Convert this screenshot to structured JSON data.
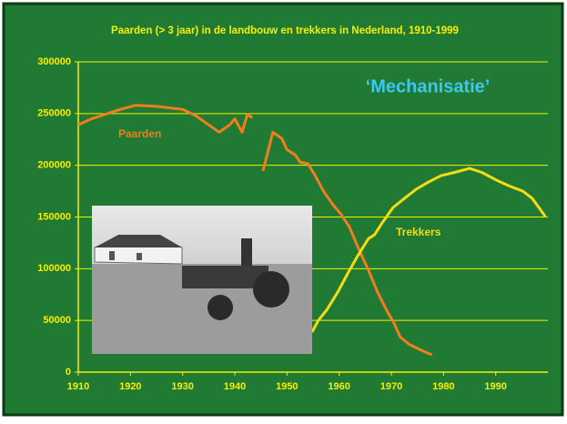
{
  "chart_data": {
    "type": "line",
    "title": "Paarden (> 3 jaar) in de landbouw en trekkers in Nederland, 1910-1999",
    "annotation": "‘Mechanisatie’",
    "xlim": [
      1910,
      2000
    ],
    "xticks": [
      1910,
      1920,
      1930,
      1940,
      1950,
      1960,
      1970,
      1980,
      1990
    ],
    "ylim": [
      0,
      300000
    ],
    "yticks": [
      0,
      50000,
      100000,
      150000,
      200000,
      250000,
      300000
    ],
    "grid": true,
    "series": [
      {
        "name": "Paarden",
        "color": "#f07d1e",
        "x": [
          1910,
          1912.4,
          1915,
          1918,
          1921,
          1925,
          1930,
          1932.5,
          1937,
          1939,
          1940,
          1941.4,
          1942.4,
          1943.4,
          1944,
          1945.4,
          1947.3,
          1949,
          1950,
          1951.6,
          1952.5,
          1954,
          1955.3,
          1957,
          1958.8,
          1960.3,
          1962,
          1963.5,
          1965.6,
          1967.3,
          1969,
          1970.5,
          1971.7,
          1973.4,
          1975,
          1976.9,
          1977.8
        ],
        "values": [
          239000,
          244700,
          249000,
          254000,
          258000,
          257000,
          254000,
          248000,
          232000,
          239000,
          245000,
          232000,
          249000,
          246000,
          null,
          194500,
          232000,
          226000,
          215000,
          210000,
          203000,
          201600,
          191000,
          175000,
          162000,
          153000,
          140000,
          122000,
          98600,
          78000,
          60700,
          47500,
          34000,
          27000,
          23000,
          18500,
          16700
        ]
      },
      {
        "name": "Trekkers",
        "color": "#f5dc14",
        "x": [
          1954.8,
          1956,
          1957.7,
          1959.8,
          1961.7,
          1963.5,
          1965.6,
          1966.8,
          1968.2,
          1970.3,
          1972.5,
          1974.8,
          1977.2,
          1979.5,
          1982,
          1985,
          1987.4,
          1990,
          1992.6,
          1995.2,
          1997,
          1999.5
        ],
        "values": [
          38700,
          50000,
          60700,
          78000,
          96000,
          112000,
          129000,
          133000,
          144000,
          159000,
          168000,
          177000,
          184000,
          190000,
          193000,
          197000,
          193000,
          186000,
          180000,
          175000,
          168000,
          150500
        ]
      }
    ]
  }
}
